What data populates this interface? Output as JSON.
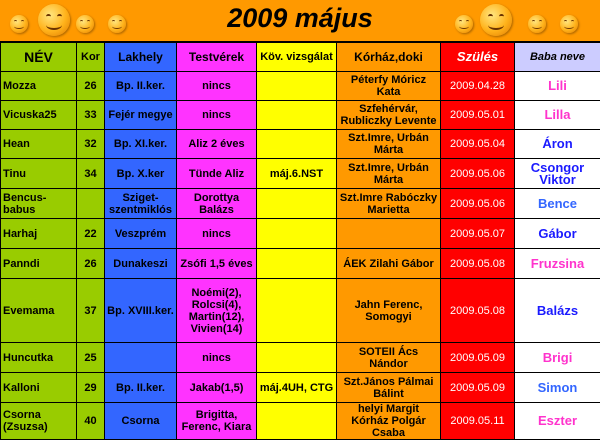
{
  "header": {
    "title": "2009 május"
  },
  "columns": {
    "name": "NÉV",
    "age": "Kor",
    "location": "Lakhely",
    "siblings": "Testvérek",
    "exam": "Köv. vizsgálat",
    "hospital": "Kórház,doki",
    "birth": "Szülés",
    "baby": "Baba neve"
  },
  "rows": [
    {
      "name": "Mozza",
      "age": "26",
      "location": "Bp. II.ker.",
      "siblings": "nincs",
      "exam": "",
      "hospital": "Péterfy Móricz Kata",
      "birth": "2009.04.28",
      "baby": "Lili",
      "baby_color": "#ff33cc"
    },
    {
      "name": "Vicuska25",
      "age": "33",
      "location": "Fejér megye",
      "siblings": "nincs",
      "exam": "",
      "hospital": "Szfehérvár, Rubliczky Levente",
      "birth": "2009.05.01",
      "baby": "Lilla",
      "baby_color": "#ff33cc"
    },
    {
      "name": "Hean",
      "age": "32",
      "location": "Bp. XI.ker.",
      "siblings": "Aliz 2 éves",
      "exam": "",
      "hospital": "Szt.Imre, Urbán Márta",
      "birth": "2009.05.04",
      "baby": "Áron",
      "baby_color": "#1a1aff"
    },
    {
      "name": "Tinu",
      "age": "34",
      "location": "Bp. X.ker",
      "siblings": "Tünde Aliz",
      "exam": "máj.6.NST",
      "hospital": "Szt.Imre, Urbán Márta",
      "birth": "2009.05.06",
      "baby": "Csongor Viktor",
      "baby_color": "#1a1aff"
    },
    {
      "name": "Bencus-babus",
      "age": "",
      "location": "Sziget-szentmiklós",
      "siblings": "Dorottya Balázs",
      "exam": "",
      "hospital": "Szt.Imre Rabóczky Marietta",
      "birth": "2009.05.06",
      "baby": "Bence",
      "baby_color": "#3366ff"
    },
    {
      "name": "Harhaj",
      "age": "22",
      "location": "Veszprém",
      "siblings": "nincs",
      "exam": "",
      "hospital": "",
      "birth": "2009.05.07",
      "baby": "Gábor",
      "baby_color": "#1a1aff"
    },
    {
      "name": "Panndi",
      "age": "26",
      "location": "Dunakeszi",
      "siblings": "Zsófi 1,5 éves",
      "exam": "",
      "hospital": "ÁEK Zilahi Gábor",
      "birth": "2009.05.08",
      "baby": "Fruzsina",
      "baby_color": "#ff33cc"
    },
    {
      "name": "Evemama",
      "age": "37",
      "location": "Bp. XVIII.ker.",
      "siblings": "Noémi(2), Rolcsi(4), Martin(12), Vivien(14)",
      "exam": "",
      "hospital": "Jahn Ferenc, Somogyi",
      "birth": "2009.05.08",
      "baby": "Balázs",
      "baby_color": "#1a1aff"
    },
    {
      "name": "Huncutka",
      "age": "25",
      "location": "",
      "siblings": "nincs",
      "exam": "",
      "hospital": "SOTEII Ács Nándor",
      "birth": "2009.05.09",
      "baby": "Brigi",
      "baby_color": "#ff33cc"
    },
    {
      "name": "Kalloni",
      "age": "29",
      "location": "Bp. II.ker.",
      "siblings": "Jakab(1,5)",
      "exam": "máj.4UH, CTG",
      "hospital": "Szt.János Pálmai Bálint",
      "birth": "2009.05.09",
      "baby": "Simon",
      "baby_color": "#3366ff"
    },
    {
      "name": "Csorna (Zsuzsa)",
      "age": "40",
      "location": "Csorna",
      "siblings": "Brigitta, Ferenc, Kiara",
      "exam": "",
      "hospital": "helyi Margit Kórház Polgár Csaba",
      "birth": "2009.05.11",
      "baby": "Eszter",
      "baby_color": "#ff33cc"
    }
  ]
}
